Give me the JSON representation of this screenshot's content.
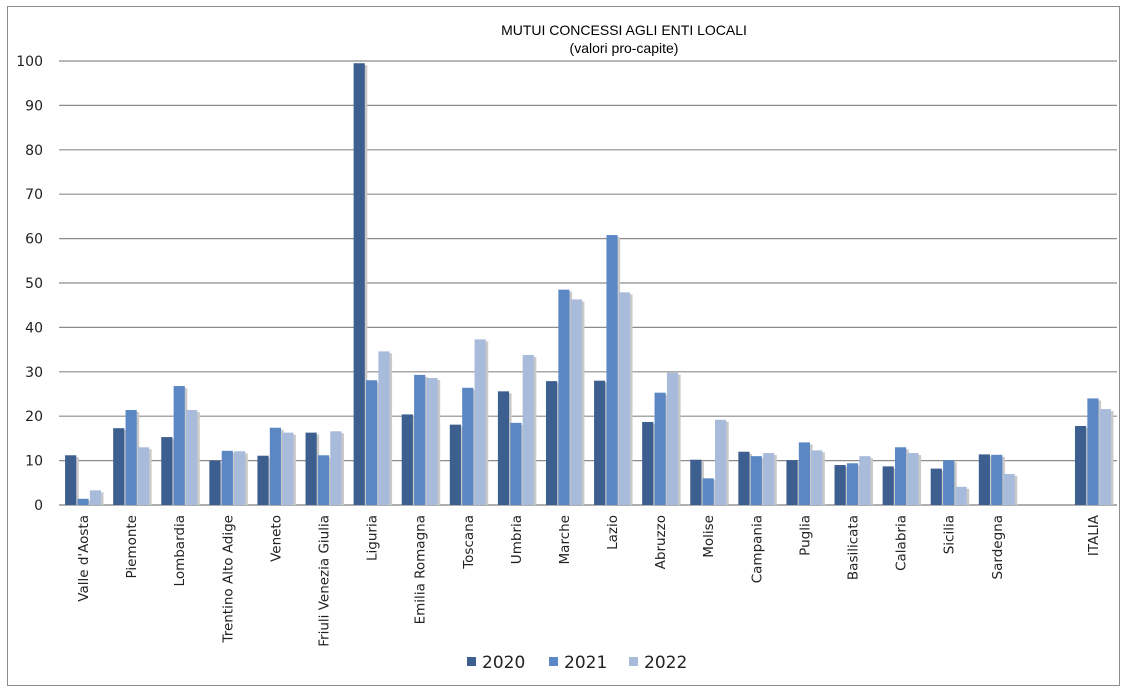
{
  "chart_data": {
    "type": "bar",
    "title": "MUTUI CONCESSI AGLI ENTI LOCALI",
    "subtitle": "(valori pro-capite)",
    "xlabel": "",
    "ylabel": "",
    "ylim": [
      0,
      100
    ],
    "yticks": [
      0,
      10,
      20,
      30,
      40,
      50,
      60,
      70,
      80,
      90,
      100
    ],
    "grid": true,
    "legend_position": "bottom",
    "categories": [
      "Valle d'Aosta",
      "Piemonte",
      "Lombardia",
      "Trentino Alto Adige",
      "Veneto",
      "Friuli Venezia Giulia",
      "Liguria",
      "Emilia Romagna",
      "Toscana",
      "Umbria",
      "Marche",
      "Lazio",
      "Abruzzo",
      "Molise",
      "Campania",
      "Puglia",
      "Basilicata",
      "Calabria",
      "Sicilia",
      "Sardegna",
      "",
      "ITALIA"
    ],
    "series": [
      {
        "name": "2020",
        "color": "#3d5f8f",
        "values": [
          11.2,
          17.3,
          15.3,
          10.0,
          11.1,
          16.3,
          99.5,
          20.4,
          18.1,
          25.6,
          27.9,
          28.0,
          18.7,
          10.2,
          12.0,
          10.1,
          9.0,
          8.7,
          8.2,
          11.4,
          null,
          17.8
        ]
      },
      {
        "name": "2021",
        "color": "#5b87c4",
        "values": [
          1.4,
          21.4,
          26.8,
          12.2,
          17.4,
          11.2,
          28.1,
          29.3,
          26.4,
          18.5,
          48.5,
          60.8,
          25.3,
          6.0,
          11.0,
          14.1,
          9.4,
          13.0,
          10.1,
          11.3,
          null,
          24.0
        ]
      },
      {
        "name": "2022",
        "color": "#a9bbdb",
        "values": [
          3.3,
          13.0,
          21.4,
          12.1,
          16.3,
          16.6,
          34.6,
          28.6,
          37.3,
          33.8,
          46.3,
          47.9,
          29.8,
          19.2,
          11.7,
          12.3,
          11.0,
          11.7,
          4.1,
          7.0,
          null,
          21.6
        ]
      }
    ]
  }
}
